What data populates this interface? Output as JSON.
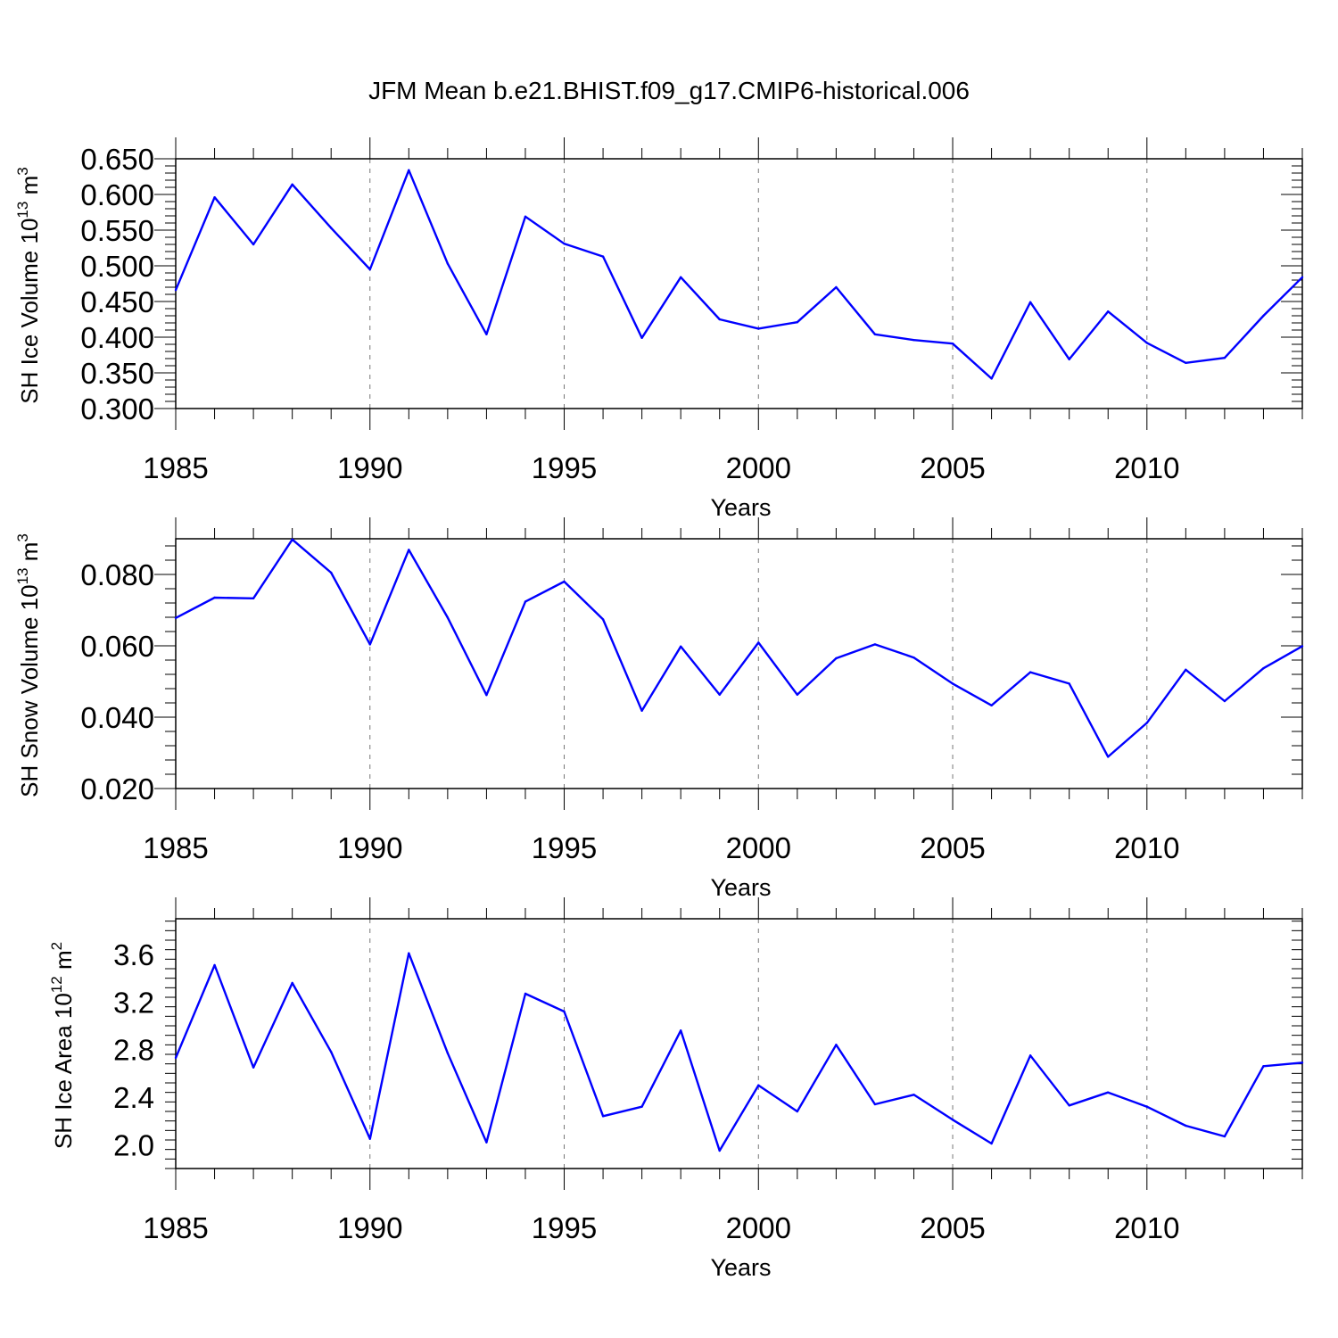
{
  "title": "JFM Mean b.e21.BHIST.f09_g17.CMIP6-historical.006",
  "colors": {
    "series": "#0000ff",
    "axis": "#000000",
    "grid": "#777777"
  },
  "chart_data": [
    {
      "type": "line",
      "title": "",
      "xlabel": "Years",
      "ylabel": {
        "text": "SH Ice Volume 10",
        "exp": "13",
        "unit": " m",
        "unit_exp": "3"
      },
      "xlim": [
        1985,
        2014
      ],
      "ylim": [
        0.3,
        0.65
      ],
      "xticks": [
        1985,
        1990,
        1995,
        2000,
        2005,
        2010
      ],
      "yticks": [
        0.3,
        0.35,
        0.4,
        0.45,
        0.5,
        0.55,
        0.6,
        0.65
      ],
      "ytick_labels": [
        "0.300",
        "0.350",
        "0.400",
        "0.450",
        "0.500",
        "0.550",
        "0.600",
        "0.650"
      ],
      "grid": "vertical dashed at major x ticks",
      "x": [
        1985,
        1986,
        1987,
        1988,
        1989,
        1990,
        1991,
        1992,
        1993,
        1994,
        1995,
        1996,
        1997,
        1998,
        1999,
        2000,
        2001,
        2002,
        2003,
        2004,
        2005,
        2006,
        2007,
        2008,
        2009,
        2010,
        2011,
        2012,
        2013,
        2014
      ],
      "series": [
        {
          "values": [
            0.466,
            0.596,
            0.53,
            0.614,
            0.553,
            0.495,
            0.634,
            0.503,
            0.404,
            0.569,
            0.531,
            0.513,
            0.399,
            0.484,
            0.425,
            0.412,
            0.421,
            0.47,
            0.404,
            0.396,
            0.391,
            0.342,
            0.449,
            0.369,
            0.436,
            0.392,
            0.364,
            0.371,
            0.43,
            0.484
          ]
        }
      ]
    },
    {
      "type": "line",
      "title": "",
      "xlabel": "Years",
      "ylabel": {
        "text": "SH Snow Volume 10",
        "exp": "13",
        "unit": " m",
        "unit_exp": "3"
      },
      "xlim": [
        1985,
        2014
      ],
      "ylim": [
        0.02,
        0.09
      ],
      "xticks": [
        1985,
        1990,
        1995,
        2000,
        2005,
        2010
      ],
      "yticks": [
        0.02,
        0.04,
        0.06,
        0.08
      ],
      "ytick_labels": [
        "0.020",
        "0.040",
        "0.060",
        "0.080"
      ],
      "grid": "vertical dashed at major x ticks",
      "x": [
        1985,
        1986,
        1987,
        1988,
        1989,
        1990,
        1991,
        1992,
        1993,
        1994,
        1995,
        1996,
        1997,
        1998,
        1999,
        2000,
        2001,
        2002,
        2003,
        2004,
        2005,
        2006,
        2007,
        2008,
        2009,
        2010,
        2011,
        2012,
        2013,
        2014
      ],
      "series": [
        {
          "values": [
            0.0678,
            0.0735,
            0.0733,
            0.0898,
            0.0805,
            0.0604,
            0.0869,
            0.0679,
            0.0462,
            0.0724,
            0.078,
            0.0674,
            0.0418,
            0.0598,
            0.0463,
            0.0609,
            0.0463,
            0.0565,
            0.0604,
            0.0567,
            0.0494,
            0.0433,
            0.0526,
            0.0494,
            0.0289,
            0.0384,
            0.0533,
            0.0445,
            0.0537,
            0.0599
          ]
        }
      ]
    },
    {
      "type": "line",
      "title": "",
      "xlabel": "Years",
      "ylabel": {
        "text": "SH Ice Area 10",
        "exp": "12",
        "unit": " m",
        "unit_exp": "2"
      },
      "xlim": [
        1985,
        2014
      ],
      "ylim": [
        1.8,
        3.9
      ],
      "xticks": [
        1985,
        1990,
        1995,
        2000,
        2005,
        2010
      ],
      "yticks": [
        2.0,
        2.4,
        2.8,
        3.2,
        3.6
      ],
      "ytick_labels": [
        "2.0",
        "2.4",
        "2.8",
        "3.2",
        "3.6"
      ],
      "grid": "vertical dashed at major x ticks",
      "x": [
        1985,
        1986,
        1987,
        1988,
        1989,
        1990,
        1991,
        1992,
        1993,
        1994,
        1995,
        1996,
        1997,
        1998,
        1999,
        2000,
        2001,
        2002,
        2003,
        2004,
        2005,
        2006,
        2007,
        2008,
        2009,
        2010,
        2011,
        2012,
        2013,
        2014
      ],
      "series": [
        {
          "values": [
            2.73,
            3.51,
            2.65,
            3.36,
            2.78,
            2.05,
            3.61,
            2.77,
            2.02,
            3.27,
            3.12,
            2.24,
            2.32,
            2.96,
            1.95,
            2.5,
            2.28,
            2.84,
            2.34,
            2.42,
            2.21,
            2.01,
            2.75,
            2.33,
            2.44,
            2.32,
            2.16,
            2.07,
            2.66,
            2.69
          ]
        }
      ]
    }
  ]
}
